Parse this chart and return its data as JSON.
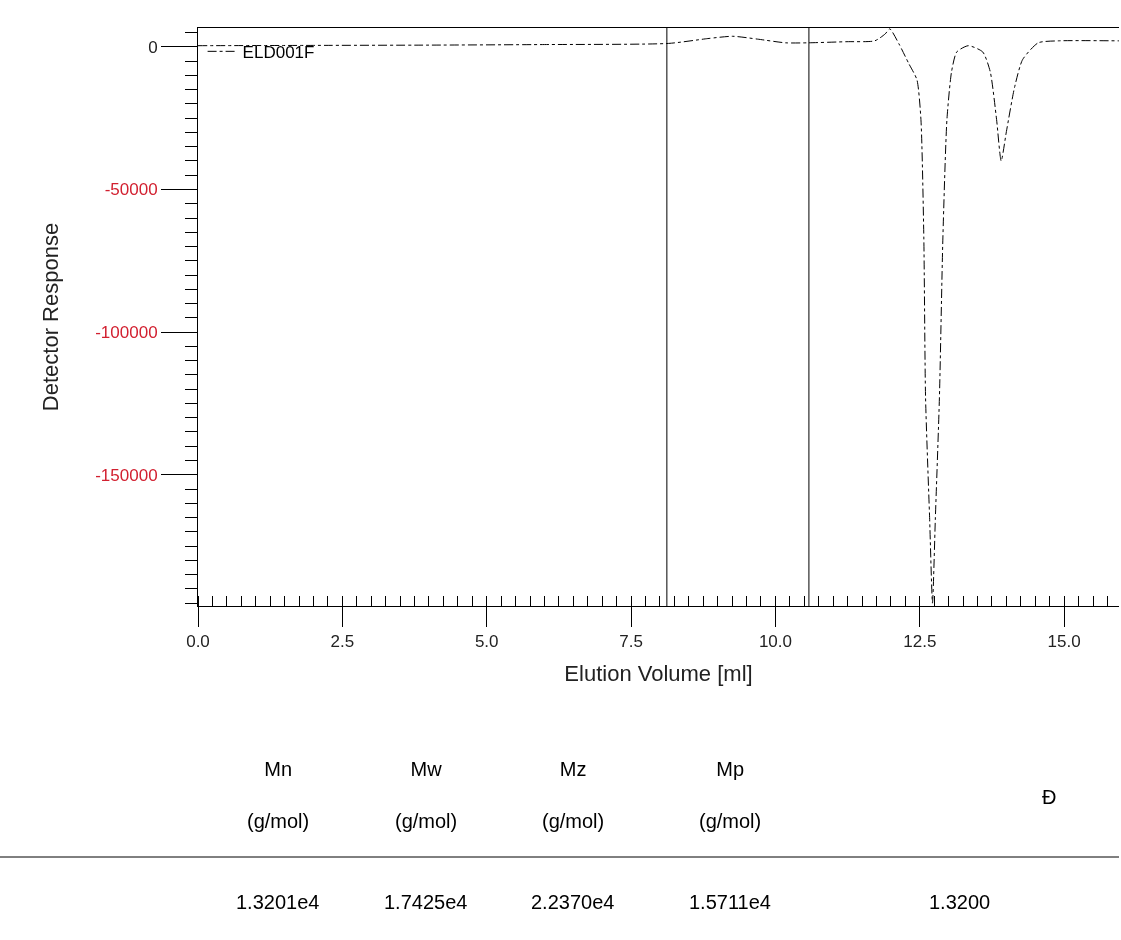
{
  "chart_data": {
    "type": "line",
    "xlabel": "Elution Volume [ml]",
    "ylabel": "Detector Response",
    "xlim": [
      0,
      15.95
    ],
    "ylim": [
      -196000,
      6600
    ],
    "xticks": [
      {
        "value": 0,
        "label": "0.0"
      },
      {
        "value": 2.5,
        "label": "2.5"
      },
      {
        "value": 5,
        "label": "5.0"
      },
      {
        "value": 7.5,
        "label": "7.5"
      },
      {
        "value": 10,
        "label": "10.0"
      },
      {
        "value": 12.5,
        "label": "12.5"
      },
      {
        "value": 15,
        "label": "15.0"
      }
    ],
    "yticks": [
      0,
      -50000,
      -100000,
      -150000
    ],
    "legend": "top left",
    "line_style": "dashed",
    "marker": "none",
    "series": [
      {
        "name": "ELD001F",
        "color": "#000000",
        "x": [
          0,
          2,
          4,
          6,
          8.15,
          8.83,
          9.26,
          9.69,
          10.18,
          10.55,
          11.24,
          11.72,
          11.9,
          11.98,
          12.14,
          12.31,
          12.45,
          12.52,
          12.57,
          12.6,
          12.67,
          12.72,
          12.77,
          12.84,
          12.9,
          12.97,
          13.05,
          13.14,
          13.34,
          13.59,
          13.72,
          13.83,
          13.91,
          14.0,
          14.14,
          14.28,
          14.55,
          14.9,
          15.95
        ],
        "values": [
          400,
          500,
          600,
          800,
          1200,
          2900,
          3700,
          2700,
          1400,
          1400,
          1800,
          2100,
          4500,
          6300,
          1000,
          -5900,
          -11500,
          -25500,
          -67000,
          -123000,
          -165000,
          -195000,
          -165000,
          -123000,
          -67000,
          -25500,
          -8700,
          -1800,
          400,
          -1800,
          -8700,
          -25500,
          -40000,
          -29700,
          -14300,
          -4500,
          1400,
          2100,
          2100
        ]
      }
    ],
    "ref_lines": [
      {
        "axis": "x",
        "value": 8.12,
        "color": "#000000"
      },
      {
        "axis": "x",
        "value": 10.58,
        "color": "#000000"
      }
    ],
    "annotations": [
      "Mn\n\n(g/mol)",
      "Mw\n\n(g/mol)",
      "Mz\n\n(g/mol)",
      "Mp\n\n(g/mol)",
      "Đ",
      "1.3201e4",
      "1.7425e4",
      "2.2370e4",
      "1.5711e4",
      "1.3200"
    ]
  }
}
